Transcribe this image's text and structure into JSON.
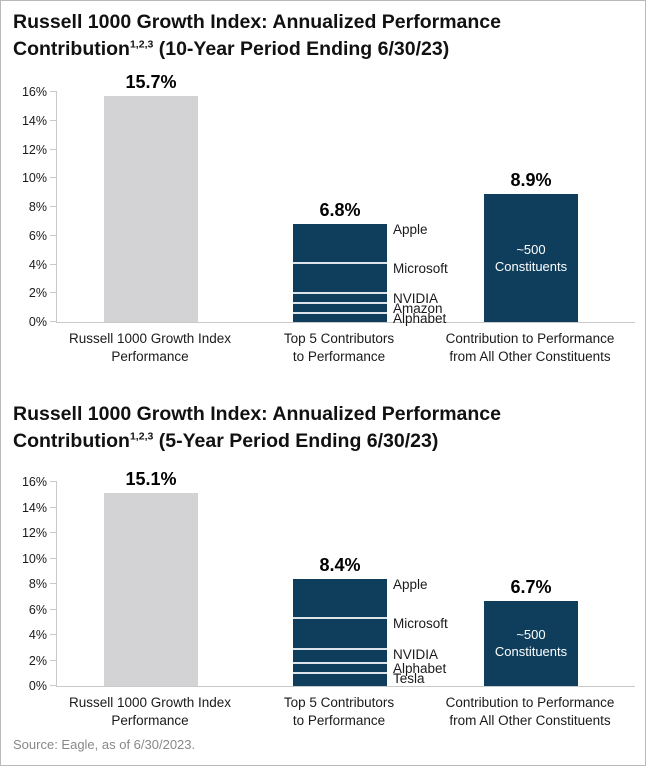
{
  "footer": {
    "source_note": "Source: Eagle, as of 6/30/2023."
  },
  "colors": {
    "navy": "#0f3e5d",
    "bar_gray": "#d3d3d5",
    "divider": "#dde4e8",
    "axis": "#c9c9c9",
    "text": "#1a1a1a",
    "source_text": "#888888",
    "page_border": "#b9b9b9",
    "inner_label_text": "#ffffff"
  },
  "chart_data": [
    {
      "type": "bar",
      "title": "Russell 1000 Growth Index: Annualized Performance Contribution (10-Year Period Ending 6/30/23)",
      "title_line1": "Russell 1000 Growth Index: Annualized Performance",
      "title_line2": {
        "text": "Contribution",
        "superscript": "1,2,3",
        "rest": " (10-Year Period Ending 6/30/23)"
      },
      "xlabel": "",
      "ylabel": "",
      "ylim": [
        0,
        16
      ],
      "ytick_step": 2,
      "ytick_labels": [
        "0%",
        "2%",
        "4%",
        "6%",
        "8%",
        "10%",
        "12%",
        "14%",
        "16%"
      ],
      "grid": false,
      "legend": "none",
      "categories": [
        "Russell 1000 Growth Index Performance",
        "Top 5 Contributors to Performance",
        "Contribution to Performance from All Other Constituents"
      ],
      "bars": [
        {
          "category_line1": "Russell 1000 Growth Index",
          "category_line2": "Performance",
          "value": 15.7,
          "value_label": "15.7%",
          "style": "gray"
        },
        {
          "category_line1": "Top 5 Contributors",
          "category_line2": "to Performance",
          "value": 6.8,
          "value_label": "6.8%",
          "style": "navy-stacked",
          "segments_top_to_bottom": [
            {
              "name": "Apple",
              "value": 2.7
            },
            {
              "name": "Microsoft",
              "value": 2.1
            },
            {
              "name": "NVIDIA",
              "value": 0.7
            },
            {
              "name": "Amazon",
              "value": 0.7
            },
            {
              "name": "Alphabet",
              "value": 0.6
            }
          ]
        },
        {
          "category_line1": "Contribution to Performance",
          "category_line2": "from All Other Constituents",
          "value": 8.9,
          "value_label": "8.9%",
          "style": "navy",
          "inner_label_line1": "~500",
          "inner_label_line2": "Constituents"
        }
      ]
    },
    {
      "type": "bar",
      "title": "Russell 1000 Growth Index: Annualized Performance Contribution (5-Year Period Ending 6/30/23)",
      "title_line1": "Russell 1000 Growth Index: Annualized Performance",
      "title_line2": {
        "text": "Contribution",
        "superscript": "1,2,3",
        "rest": " (5-Year Period Ending 6/30/23)"
      },
      "xlabel": "",
      "ylabel": "",
      "ylim": [
        0,
        16
      ],
      "ytick_step": 2,
      "ytick_labels": [
        "0%",
        "2%",
        "4%",
        "6%",
        "8%",
        "10%",
        "12%",
        "14%",
        "16%"
      ],
      "grid": false,
      "legend": "none",
      "categories": [
        "Russell 1000 Growth Index Performance",
        "Top 5 Contributors to Performance",
        "Contribution to Performance from All Other Constituents"
      ],
      "bars": [
        {
          "category_line1": "Russell 1000 Growth Index",
          "category_line2": "Performance",
          "value": 15.1,
          "value_label": "15.1%",
          "style": "gray"
        },
        {
          "category_line1": "Top 5 Contributors",
          "category_line2": "to Performance",
          "value": 8.4,
          "value_label": "8.4%",
          "style": "navy-stacked",
          "segments_top_to_bottom": [
            {
              "name": "Apple",
              "value": 3.1
            },
            {
              "name": "Microsoft",
              "value": 2.4
            },
            {
              "name": "NVIDIA",
              "value": 1.1
            },
            {
              "name": "Alphabet",
              "value": 0.8
            },
            {
              "name": "Tesla",
              "value": 1.0
            }
          ]
        },
        {
          "category_line1": "Contribution to Performance",
          "category_line2": "from All Other Constituents",
          "value": 6.7,
          "value_label": "6.7%",
          "style": "navy",
          "inner_label_line1": "~500",
          "inner_label_line2": "Constituents"
        }
      ]
    }
  ]
}
